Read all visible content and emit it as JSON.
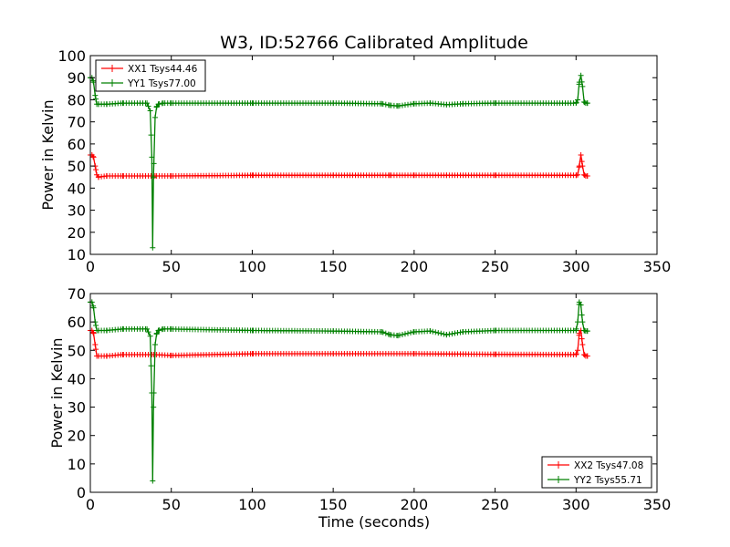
{
  "figure": {
    "title": "W3, ID:52766 Calibrated Amplitude",
    "xlabel": "Time (seconds)"
  },
  "colors": {
    "red": "#ff0000",
    "green": "#008000"
  },
  "chart_data": [
    {
      "type": "line",
      "title": "W3, ID:52766 Calibrated Amplitude",
      "xlabel": "",
      "ylabel": "Power in Kelvin",
      "xlim": [
        0,
        350
      ],
      "ylim": [
        10,
        100
      ],
      "xticks": [
        "0",
        "50",
        "100",
        "150",
        "200",
        "250",
        "300",
        "350"
      ],
      "yticks": [
        "10",
        "20",
        "30",
        "40",
        "50",
        "60",
        "70",
        "80",
        "90",
        "100"
      ],
      "grid": false,
      "legend": "top-left",
      "series": [
        {
          "name": "XX1 Tsys44.46",
          "color": "#ff0000",
          "x": [
            0,
            1,
            2,
            3,
            4,
            5,
            10,
            20,
            38,
            40,
            50,
            100,
            150,
            185,
            200,
            220,
            250,
            300,
            301,
            302,
            303,
            304,
            305,
            306,
            307
          ],
          "y": [
            55,
            55,
            54,
            50,
            46,
            45,
            45.5,
            45.5,
            45.5,
            45.5,
            45.5,
            45.8,
            45.8,
            45.8,
            45.8,
            45.8,
            45.8,
            45.8,
            46,
            50,
            55,
            50,
            46,
            45.5,
            45.5
          ]
        },
        {
          "name": "YY1 Tsys77.00",
          "color": "#008000",
          "x": [
            0,
            1,
            2,
            3,
            4,
            5,
            10,
            20,
            35,
            37,
            38,
            38.5,
            39,
            40,
            41,
            42,
            45,
            50,
            100,
            150,
            180,
            185,
            190,
            200,
            210,
            220,
            230,
            250,
            300,
            301,
            302,
            303,
            304,
            305,
            306,
            307
          ],
          "y": [
            90,
            90,
            88,
            82,
            78,
            78,
            78,
            78.5,
            78.5,
            75,
            54,
            13,
            45,
            72,
            77,
            78,
            78.5,
            78.5,
            78.5,
            78.5,
            78.2,
            77.5,
            77.2,
            78.2,
            78.5,
            77.8,
            78.2,
            78.5,
            78.5,
            80,
            88,
            91,
            86,
            79,
            78.5,
            78.5
          ]
        }
      ]
    },
    {
      "type": "line",
      "title": "",
      "xlabel": "Time (seconds)",
      "ylabel": "Power in Kelvin",
      "xlim": [
        0,
        350
      ],
      "ylim": [
        0,
        70
      ],
      "xticks": [
        "0",
        "50",
        "100",
        "150",
        "200",
        "250",
        "300",
        "350"
      ],
      "yticks": [
        "0",
        "10",
        "20",
        "30",
        "40",
        "50",
        "60",
        "70"
      ],
      "grid": false,
      "legend": "bottom-right",
      "series": [
        {
          "name": "XX2 Tsys47.08",
          "color": "#ff0000",
          "x": [
            0,
            1,
            2,
            3,
            4,
            5,
            10,
            20,
            38,
            40,
            50,
            100,
            150,
            200,
            250,
            300,
            301,
            302,
            303,
            304,
            305,
            306,
            307
          ],
          "y": [
            57,
            57,
            56,
            52,
            48,
            48,
            48,
            48.5,
            48.5,
            48.5,
            48.2,
            48.8,
            48.8,
            48.8,
            48.6,
            48.5,
            50,
            56,
            57,
            52,
            48.5,
            48,
            48
          ]
        },
        {
          "name": "YY2 Tsys55.71",
          "color": "#008000",
          "x": [
            0,
            1,
            2,
            3,
            4,
            5,
            10,
            20,
            35,
            37,
            38,
            38.5,
            39,
            40,
            41,
            42,
            45,
            50,
            100,
            150,
            180,
            185,
            190,
            200,
            210,
            220,
            230,
            250,
            300,
            301,
            302,
            303,
            304,
            305,
            306,
            307
          ],
          "y": [
            67,
            67,
            65,
            60,
            57,
            57,
            57,
            57.5,
            57.5,
            55,
            35,
            4,
            30,
            52,
            56,
            57,
            57.5,
            57.5,
            57,
            56.8,
            56.5,
            55.5,
            55.2,
            56.5,
            56.8,
            55.5,
            56.5,
            57,
            57,
            60,
            67,
            66,
            60,
            57,
            56.8,
            56.8
          ]
        }
      ]
    }
  ]
}
